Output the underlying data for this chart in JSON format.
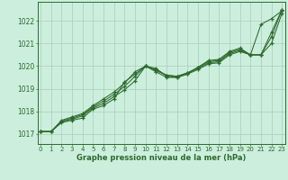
{
  "bg_color": "#cceedd",
  "grid_color": "#aaccbb",
  "line_color": "#2d6a2d",
  "marker_color": "#2d6a2d",
  "xlabel": "Graphe pression niveau de la mer (hPa)",
  "xlabel_color": "#2d6a2d",
  "ylabel_ticks": [
    1017,
    1018,
    1019,
    1020,
    1021,
    1022
  ],
  "xtick_labels": [
    "0",
    "1",
    "2",
    "3",
    "4",
    "5",
    "6",
    "7",
    "8",
    "9",
    "10",
    "11",
    "12",
    "13",
    "14",
    "15",
    "16",
    "17",
    "18",
    "19",
    "20",
    "21",
    "22",
    "23"
  ],
  "ylim": [
    1016.55,
    1022.85
  ],
  "xlim": [
    -0.3,
    23.3
  ],
  "series": [
    [
      1017.1,
      1017.1,
      1017.5,
      1017.6,
      1017.7,
      1018.1,
      1018.25,
      1018.55,
      1019.3,
      1019.65,
      1020.0,
      1019.9,
      1019.55,
      1019.5,
      1019.65,
      1019.85,
      1020.1,
      1020.15,
      1020.5,
      1020.65,
      1020.5,
      1021.85,
      1022.1,
      1022.45
    ],
    [
      1017.1,
      1017.1,
      1017.55,
      1017.65,
      1017.8,
      1018.15,
      1018.35,
      1018.65,
      1018.95,
      1019.35,
      1020.0,
      1019.85,
      1019.6,
      1019.55,
      1019.7,
      1019.9,
      1020.15,
      1020.2,
      1020.55,
      1020.7,
      1020.5,
      1020.5,
      1021.0,
      1022.35
    ],
    [
      1017.1,
      1017.1,
      1017.55,
      1017.7,
      1017.85,
      1018.2,
      1018.45,
      1018.75,
      1019.1,
      1019.55,
      1020.0,
      1019.8,
      1019.6,
      1019.55,
      1019.7,
      1019.95,
      1020.2,
      1020.25,
      1020.6,
      1020.75,
      1020.5,
      1020.5,
      1021.5,
      1022.5
    ],
    [
      1017.1,
      1017.1,
      1017.6,
      1017.75,
      1017.9,
      1018.25,
      1018.55,
      1018.85,
      1019.25,
      1019.75,
      1020.0,
      1019.75,
      1019.5,
      1019.5,
      1019.65,
      1019.95,
      1020.25,
      1020.3,
      1020.65,
      1020.8,
      1020.5,
      1020.5,
      1021.3,
      1022.5
    ]
  ]
}
